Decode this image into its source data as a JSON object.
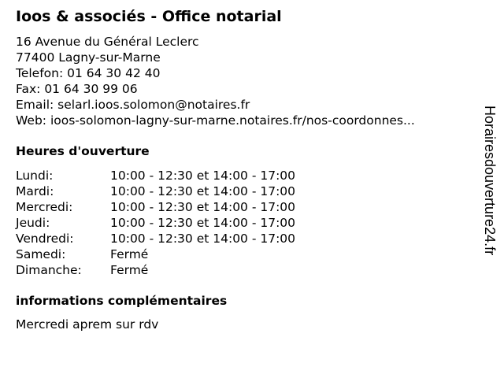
{
  "title": "Ioos & associés - Office notarial",
  "contact": {
    "street": "16 Avenue du Général Leclerc",
    "city": "77400 Lagny-sur-Marne",
    "phone": "Telefon: 01 64 30 42 40",
    "fax": "Fax: 01 64 30 99 06",
    "email": "Email: selarl.ioos.solomon@notaires.fr",
    "web": "Web: ioos-solomon-lagny-sur-marne.notaires.fr/nos-coordonnes..."
  },
  "hours_heading": "Heures d'ouverture",
  "hours": [
    {
      "day": "Lundi:",
      "time": "10:00 - 12:30 et 14:00 - 17:00"
    },
    {
      "day": "Mardi:",
      "time": "10:00 - 12:30 et 14:00 - 17:00"
    },
    {
      "day": "Mercredi:",
      "time": "10:00 - 12:30 et 14:00 - 17:00"
    },
    {
      "day": "Jeudi:",
      "time": "10:00 - 12:30 et 14:00 - 17:00"
    },
    {
      "day": "Vendredi:",
      "time": "10:00 - 12:30 et 14:00 - 17:00"
    },
    {
      "day": "Samedi:",
      "time": "Fermé"
    },
    {
      "day": "Dimanche:",
      "time": "Fermé"
    }
  ],
  "info_heading": "informations complémentaires",
  "info_text": "Mercredi aprem sur rdv",
  "watermark": "Horairesdouverture24.fr"
}
